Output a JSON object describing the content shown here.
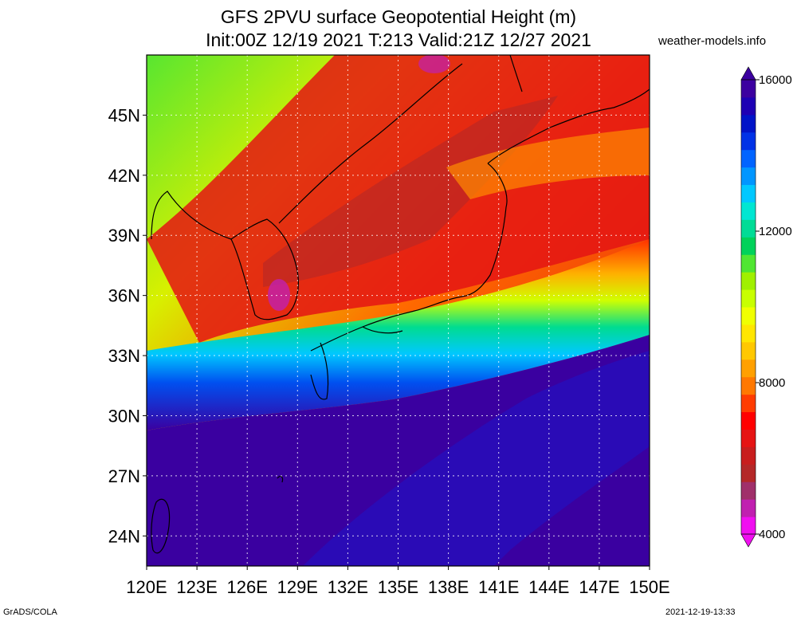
{
  "title_line1": "GFS 2PVU surface Geopotential Height (m)",
  "title_line2": "Init:00Z 12/19 2021 T:213 Valid:21Z 12/27 2021",
  "site": "weather-models.info",
  "footer_left": "GrADS/COLA",
  "footer_right": "2021-12-19-13:33",
  "map": {
    "lon_range": [
      120,
      150
    ],
    "lat_range": [
      22.5,
      48.0
    ],
    "lon_ticks": [
      "120E",
      "123E",
      "126E",
      "129E",
      "132E",
      "135E",
      "138E",
      "141E",
      "144E",
      "147E",
      "150E"
    ],
    "lat_ticks": [
      "24N",
      "27N",
      "30N",
      "33N",
      "36N",
      "39N",
      "42N",
      "45N"
    ],
    "gridlines": true
  },
  "colorbar": {
    "min": 4000,
    "max": 16000,
    "labels": [
      "16000",
      "12000",
      "8000",
      "4000"
    ],
    "colors": [
      "#f00ff0",
      "#c020b0",
      "#a0306a",
      "#b42828",
      "#c81e1e",
      "#e61414",
      "#ff0000",
      "#ff3c00",
      "#ff7800",
      "#ffa000",
      "#ffc800",
      "#ffe600",
      "#f0ff00",
      "#c8ff00",
      "#a0f000",
      "#50e632",
      "#00d25a",
      "#00dc96",
      "#00e6d2",
      "#00c8ff",
      "#0096ff",
      "#0064ff",
      "#0032e6",
      "#0014c8",
      "#1e00b4",
      "#3c00a0"
    ]
  }
}
